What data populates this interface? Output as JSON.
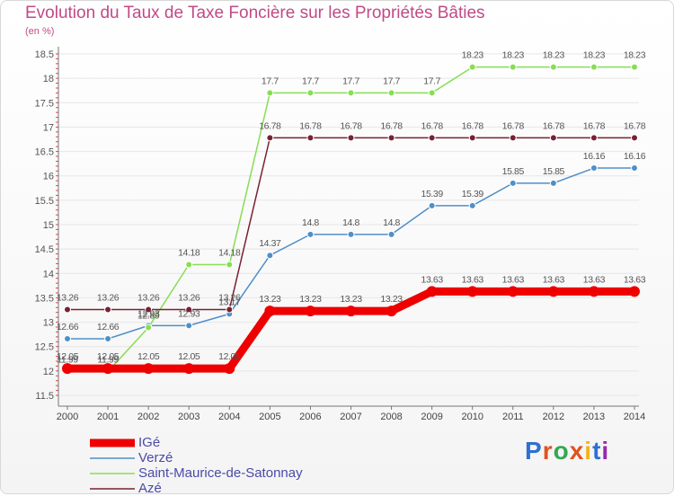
{
  "chart_data": {
    "type": "line",
    "title": "Evolution du Taux de Taxe Foncière sur les Propriétés Bâties",
    "unit_label": "(en %)",
    "x": [
      "2000",
      "2001",
      "2002",
      "2003",
      "2004",
      "2005",
      "2006",
      "2007",
      "2008",
      "2009",
      "2010",
      "2011",
      "2012",
      "2013",
      "2014"
    ],
    "ylim": [
      11.5,
      18.5
    ],
    "yticks": [
      "11.5",
      "12",
      "12.5",
      "13",
      "13.5",
      "14",
      "14.5",
      "15",
      "15.5",
      "16",
      "16.5",
      "17",
      "17.5",
      "18",
      "18.5"
    ],
    "series": [
      {
        "name": "IGé",
        "color": "#ee0000",
        "values": [
          12.05,
          12.05,
          12.05,
          12.05,
          12.05,
          13.23,
          13.23,
          13.23,
          13.23,
          13.63,
          13.63,
          13.63,
          13.63,
          13.63,
          13.63
        ],
        "labels": [
          "12.05",
          "12.05",
          "12.05",
          "12.05",
          "12.05",
          "13.23",
          "13.23",
          "13.23",
          "13.23",
          "13.63",
          "13.63",
          "13.63",
          "13.63",
          "13.63",
          "13.63"
        ]
      },
      {
        "name": "Verzé",
        "color": "#4f8fc8",
        "values": [
          12.66,
          12.66,
          12.93,
          12.93,
          13.17,
          14.37,
          14.8,
          14.8,
          14.8,
          15.39,
          15.39,
          15.85,
          15.85,
          16.16,
          16.16
        ],
        "labels": [
          "12.66",
          "12.66",
          "12.93",
          "12.93",
          "13.17",
          "14.37",
          "14.8",
          "14.8",
          "14.8",
          "15.39",
          "15.39",
          "15.85",
          "15.85",
          "16.16",
          "16.16"
        ]
      },
      {
        "name": "Saint-Maurice-de-Satonnay",
        "color": "#88dd55",
        "values": [
          11.99,
          11.99,
          12.89,
          14.18,
          14.18,
          17.7,
          17.7,
          17.7,
          17.7,
          17.7,
          18.23,
          18.23,
          18.23,
          18.23,
          18.23
        ],
        "labels": [
          "11.99",
          "11.99",
          "12.89",
          "14.18",
          "14.18",
          "17.7",
          "17.7",
          "17.7",
          "17.7",
          "17.7",
          "18.23",
          "18.23",
          "18.23",
          "18.23",
          "18.23"
        ]
      },
      {
        "name": "Azé",
        "color": "#772233",
        "values": [
          13.26,
          13.26,
          13.26,
          13.26,
          13.26,
          16.78,
          16.78,
          16.78,
          16.78,
          16.78,
          16.78,
          16.78,
          16.78,
          16.78,
          16.78
        ],
        "labels": [
          "13.26",
          "13.26",
          "13.26",
          "13.26",
          "13.26",
          "16.78",
          "16.78",
          "16.78",
          "16.78",
          "16.78",
          "16.78",
          "16.78",
          "16.78",
          "16.78",
          "16.78"
        ]
      }
    ]
  },
  "legend": {
    "items": [
      "IGé",
      "Verzé",
      "Saint-Maurice-de-Satonnay",
      "Azé"
    ]
  },
  "brand": {
    "letters": [
      "P",
      "r",
      "o",
      "x",
      "i",
      "t",
      "i"
    ],
    "colors": [
      "#2f6fd1",
      "#e0531f",
      "#34a853",
      "#e0531f",
      "#f3b21c",
      "#2f6fd1",
      "#9c27b0"
    ]
  }
}
